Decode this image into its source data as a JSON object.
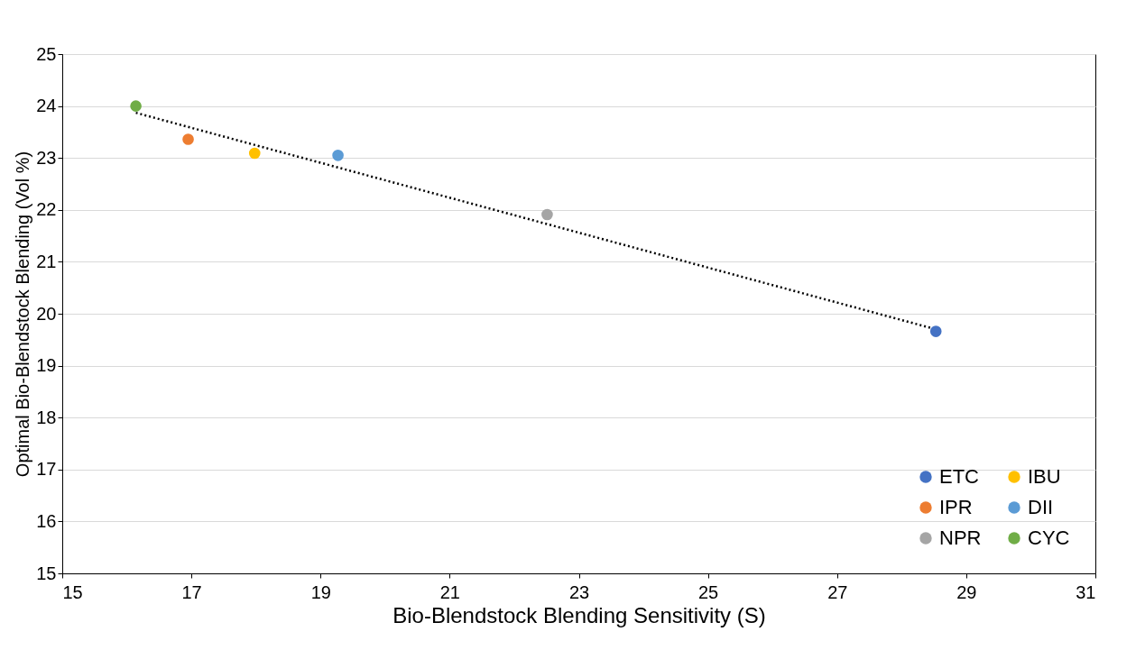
{
  "chart_data": {
    "type": "scatter",
    "xlabel": "Bio-Blendstock Blending Sensitivity (S)",
    "ylabel": "Optimal Bio-Blendstock Blending (Vol %)",
    "xlim": [
      15,
      31
    ],
    "xticks": [
      15,
      17,
      19,
      21,
      23,
      25,
      27,
      29,
      31
    ],
    "ylim": [
      15,
      25
    ],
    "yticks": [
      15,
      16,
      17,
      18,
      19,
      20,
      21,
      22,
      23,
      24,
      25
    ],
    "grid": "y",
    "legend": "bottom right",
    "marker": "circle",
    "series": [
      {
        "name": "ETC",
        "color": "#4472c4",
        "x": [
          28.53
        ],
        "values": [
          19.66
        ]
      },
      {
        "name": "IPR",
        "color": "#ed7d31",
        "x": [
          16.95
        ],
        "values": [
          23.36
        ]
      },
      {
        "name": "NPR",
        "color": "#a5a5a5",
        "x": [
          22.51
        ],
        "values": [
          21.91
        ]
      },
      {
        "name": "IBU",
        "color": "#ffc000",
        "x": [
          17.98
        ],
        "values": [
          23.09
        ]
      },
      {
        "name": "DII",
        "color": "#5b9bd5",
        "x": [
          19.27
        ],
        "values": [
          23.05
        ]
      },
      {
        "name": "CYC",
        "color": "#70ad47",
        "x": [
          16.14
        ],
        "values": [
          24.0
        ]
      },
      {
        "type": "line",
        "color": "#000000",
        "line_style": "dotted",
        "marker": "none",
        "x": [
          16.14,
          28.53
        ],
        "values": [
          23.87,
          19.7
        ]
      }
    ]
  }
}
